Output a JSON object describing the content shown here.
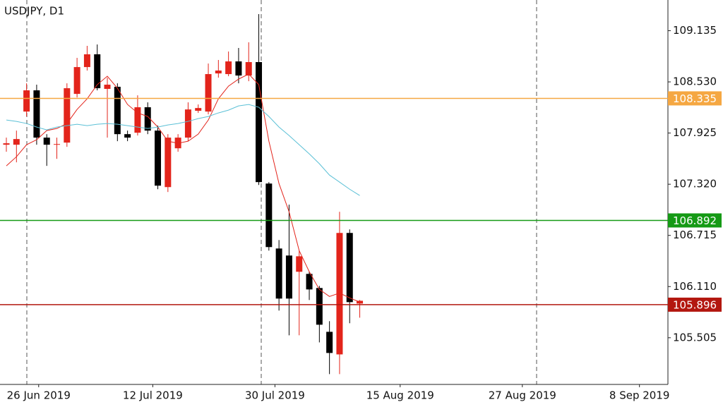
{
  "chart_data": {
    "type": "candlestick",
    "title": "USDJPY, D1",
    "x": [
      0,
      1,
      2,
      3,
      4,
      5,
      6,
      7,
      8,
      9,
      10,
      11,
      12,
      13,
      14,
      15,
      16,
      17,
      18,
      19,
      20,
      21,
      22,
      23,
      24,
      25,
      26,
      27,
      28,
      29,
      30,
      31,
      32,
      33,
      34,
      35
    ],
    "open": [
      107.787,
      107.787,
      108.179,
      108.43,
      107.871,
      107.787,
      107.812,
      108.388,
      108.705,
      108.856,
      108.447,
      108.472,
      107.912,
      107.929,
      108.23,
      107.954,
      107.286,
      107.745,
      107.871,
      108.188,
      108.179,
      108.63,
      108.622,
      108.772,
      108.605,
      108.764,
      107.328,
      106.56,
      106.477,
      106.285,
      106.26,
      106.093,
      105.575,
      105.308,
      106.744,
      105.909
    ],
    "high": [
      107.871,
      107.954,
      108.513,
      108.497,
      107.912,
      107.871,
      108.513,
      108.814,
      108.956,
      108.972,
      108.58,
      108.513,
      107.954,
      108.371,
      108.288,
      108.013,
      107.912,
      107.912,
      108.288,
      108.263,
      108.747,
      108.789,
      108.889,
      108.931,
      108.998,
      109.331,
      107.345,
      106.66,
      107.078,
      106.535,
      106.285,
      106.118,
      105.701,
      106.994,
      106.786,
      105.951
    ],
    "low": [
      107.704,
      107.579,
      108.121,
      107.787,
      107.537,
      107.62,
      107.762,
      108.346,
      108.664,
      108.43,
      107.871,
      107.829,
      107.829,
      107.896,
      107.912,
      107.261,
      107.228,
      107.704,
      107.829,
      108.163,
      108.146,
      108.58,
      108.597,
      108.513,
      108.538,
      107.311,
      106.535,
      105.826,
      105.534,
      105.534,
      105.951,
      105.45,
      105.075,
      105.075,
      105.676,
      105.742
    ],
    "close": [
      107.804,
      107.854,
      108.43,
      107.871,
      107.787,
      107.795,
      108.455,
      108.705,
      108.856,
      108.455,
      108.497,
      107.912,
      107.871,
      108.23,
      107.954,
      107.303,
      107.871,
      107.871,
      108.204,
      108.221,
      108.622,
      108.664,
      108.772,
      108.605,
      108.764,
      107.345,
      106.577,
      105.968,
      105.968,
      106.468,
      106.076,
      105.659,
      105.325,
      106.744,
      105.926,
      105.942
    ],
    "up_color": "#e3241b",
    "down_color": "#000000",
    "lines": [
      {
        "color": "#e3241b",
        "values": [
          107.537,
          107.645,
          107.787,
          107.846,
          107.954,
          107.979,
          108.038,
          108.204,
          108.33,
          108.497,
          108.597,
          108.455,
          108.263,
          108.163,
          108.121,
          107.996,
          107.829,
          107.804,
          107.829,
          107.912,
          108.079,
          108.33,
          108.48,
          108.563,
          108.622,
          108.497,
          107.829,
          107.328,
          106.994,
          106.535,
          106.285,
          106.076,
          105.993,
          106.034,
          105.976,
          105.926
        ]
      },
      {
        "color": "#5bc0d6",
        "values": [
          108.079,
          108.063,
          108.038,
          107.996,
          107.963,
          107.996,
          108.013,
          108.029,
          108.013,
          108.029,
          108.038,
          108.029,
          108.013,
          107.996,
          107.979,
          107.996,
          108.021,
          108.038,
          108.063,
          108.096,
          108.121,
          108.163,
          108.196,
          108.246,
          108.263,
          108.23,
          108.121,
          107.996,
          107.896,
          107.787,
          107.679,
          107.562,
          107.428,
          107.345,
          107.261,
          107.186
        ]
      }
    ],
    "hlines": [
      {
        "value": 108.335,
        "color": "#f5a742"
      },
      {
        "value": 106.892,
        "color": "#159a15"
      },
      {
        "value": 105.896,
        "color": "#b3170f"
      }
    ],
    "xlim": [
      -0.63,
      65.52
    ],
    "ylim": [
      104.953,
      109.498
    ],
    "xticks": [
      {
        "value": 3.2,
        "label": "26 Jun 2019"
      },
      {
        "value": 14.5,
        "label": "12 Jul 2019"
      },
      {
        "value": 26.6,
        "label": "30 Jul 2019"
      },
      {
        "value": 39.0,
        "label": "15 Aug 2019"
      },
      {
        "value": 51.1,
        "label": "27 Aug 2019"
      },
      {
        "value": 62.7,
        "label": "8 Sep 2019"
      }
    ],
    "yticks": [
      105.505,
      {
        "value": 106.11,
        "label": "106.110"
      },
      106.715,
      {
        "value": 107.32,
        "label": "107.320"
      },
      107.925,
      {
        "value": 108.53,
        "label": "108.530"
      },
      109.135
    ]
  }
}
